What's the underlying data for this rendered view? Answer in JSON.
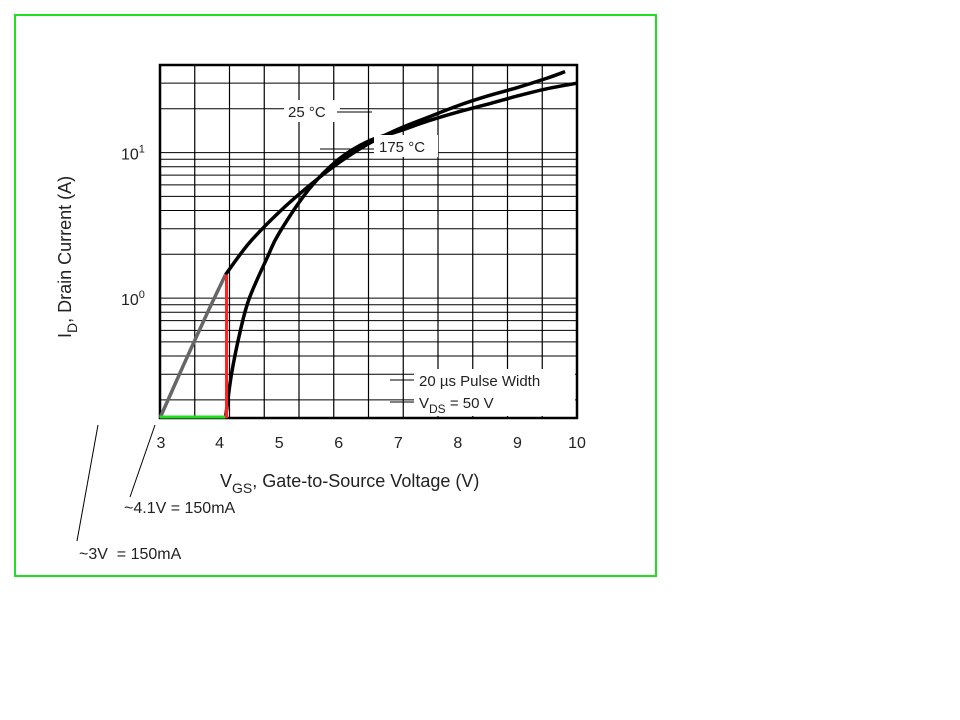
{
  "chart_data": {
    "type": "line",
    "xlabel": "V",
    "xlabel_sub": "GS",
    "xlabel_rest": ", Gate-to-Source Voltage (V)",
    "ylabel": "I",
    "ylabel_sub": "D",
    "ylabel_rest": ", Drain Current (A)",
    "xlim": [
      3,
      10
    ],
    "ylim": [
      0.15,
      40
    ],
    "yscale": "log",
    "x_ticks": [
      "3",
      "4",
      "5",
      "6",
      "7",
      "8",
      "9",
      "10"
    ],
    "y_ticks": [
      {
        "value": 1,
        "base": "10",
        "exp": "0"
      },
      {
        "value": 10,
        "base": "10",
        "exp": "1"
      }
    ],
    "grid": true,
    "series": [
      {
        "name": "25 °C",
        "color": "#000000",
        "points": [
          [
            3.0,
            0.15
          ],
          [
            3.4,
            0.35
          ],
          [
            3.8,
            0.8
          ],
          [
            4.1,
            1.45
          ],
          [
            4.5,
            2.4
          ],
          [
            5.0,
            3.9
          ],
          [
            5.5,
            5.9
          ],
          [
            6.0,
            8.5
          ],
          [
            6.5,
            11.5
          ],
          [
            7.0,
            14.5
          ],
          [
            7.5,
            17.5
          ],
          [
            8.0,
            21.0
          ],
          [
            8.5,
            24.5
          ],
          [
            9.0,
            28.0
          ],
          [
            9.5,
            32.5
          ],
          [
            9.8,
            36.0
          ]
        ]
      },
      {
        "name": "175 °C",
        "color": "#000000",
        "points": [
          [
            4.1,
            0.15
          ],
          [
            4.2,
            0.3
          ],
          [
            4.35,
            0.6
          ],
          [
            4.5,
            1.0
          ],
          [
            4.8,
            1.9
          ],
          [
            5.0,
            2.8
          ],
          [
            5.5,
            5.6
          ],
          [
            6.0,
            9.0
          ],
          [
            6.5,
            12.0
          ],
          [
            7.0,
            14.0
          ],
          [
            7.5,
            16.5
          ],
          [
            8.0,
            19.0
          ],
          [
            8.5,
            21.5
          ],
          [
            9.0,
            24.5
          ],
          [
            9.5,
            27.5
          ],
          [
            10.0,
            30.0
          ]
        ]
      }
    ],
    "overlay_colors": {
      "extension": "#666666",
      "vertical": "#ff2222",
      "horizontal": "#22dd22",
      "frame": "#22dd22"
    },
    "annotations": {
      "label_25": "25 °C",
      "label_175": "175 °C",
      "pulse_width": "20 µs Pulse Width",
      "vds_v": "V",
      "vds_sub": "DS",
      "vds_rest": " = 50 V",
      "callout_41": "~4.1V = 150mA",
      "callout_3": "~3V  = 150mA"
    }
  }
}
